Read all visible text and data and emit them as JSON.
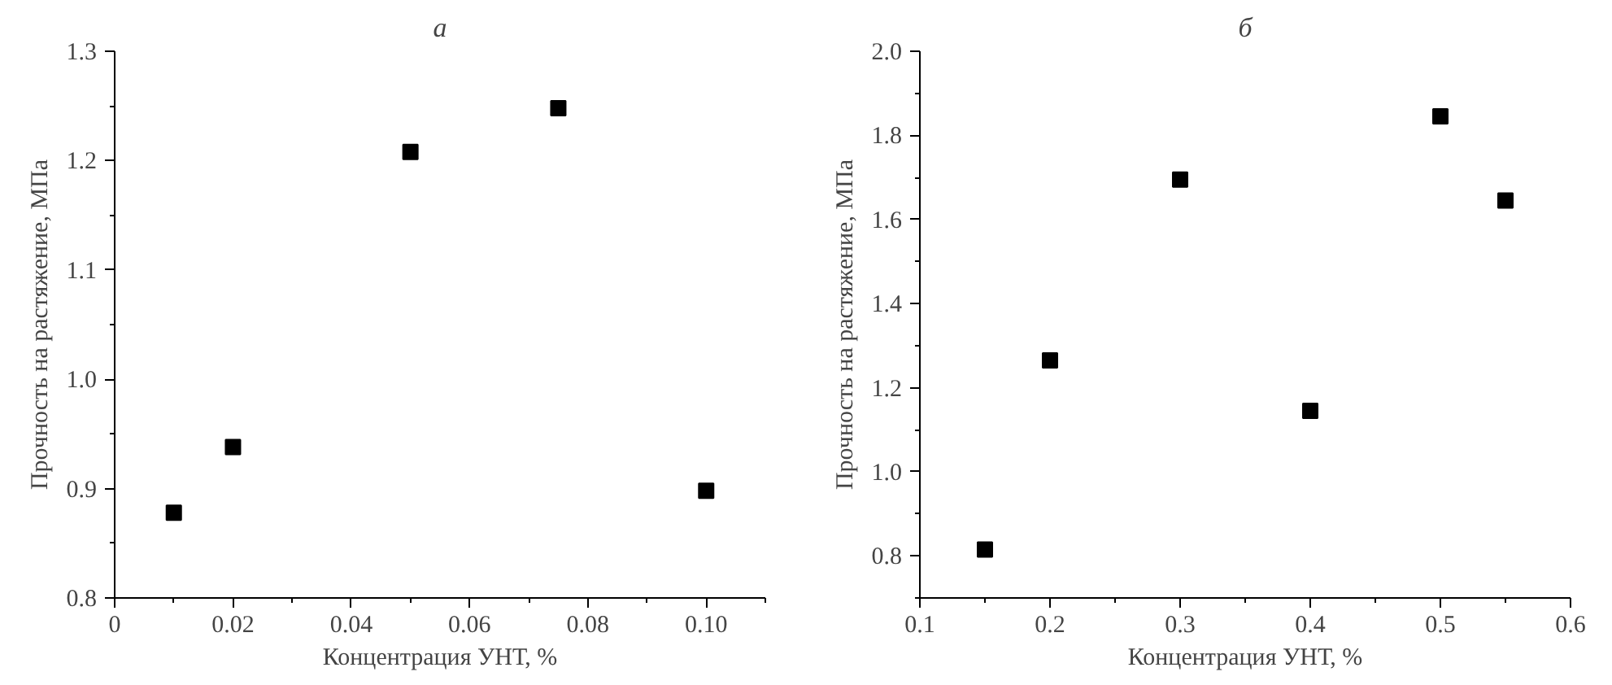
{
  "chart_data": [
    {
      "type": "scatter",
      "title": "а",
      "xlabel": "Концентрация УНТ, %",
      "ylabel": "Прочность на растяжение, МПа",
      "marker": "square",
      "x": [
        0.01,
        0.02,
        0.05,
        0.075,
        0.1
      ],
      "series": [
        {
          "color": "#000000",
          "values": [
            0.878,
            0.938,
            1.208,
            1.248,
            0.898
          ]
        }
      ],
      "xlim": [
        0,
        0.11
      ],
      "ylim": [
        0.8,
        1.3
      ],
      "xticks": [
        0,
        {
          "value": 0.01,
          "label": null
        },
        0.02,
        {
          "value": 0.03,
          "label": null
        },
        0.04,
        {
          "value": 0.05,
          "label": null
        },
        0.06,
        {
          "value": 0.07,
          "label": null
        },
        0.08,
        {
          "value": 0.09,
          "label": null
        },
        {
          "value": 0.1,
          "label": "0.10"
        },
        {
          "value": 0.11,
          "label": null
        }
      ],
      "yticks": [
        0.8,
        {
          "value": 0.85,
          "label": null
        },
        0.9,
        {
          "value": 0.95,
          "label": null
        },
        {
          "value": 1.0,
          "label": "1.0"
        },
        {
          "value": 1.05,
          "label": null
        },
        1.1,
        {
          "value": 1.15,
          "label": null
        },
        1.2,
        {
          "value": 1.25,
          "label": null
        },
        1.3
      ]
    },
    {
      "type": "scatter",
      "title": "б",
      "xlabel": "Концентрация УНТ, %",
      "ylabel": "Прочность на растяжение, МПа",
      "marker": "square",
      "x": [
        0.15,
        0.2,
        0.3,
        0.4,
        0.5,
        0.55
      ],
      "series": [
        {
          "color": "#000000",
          "values": [
            0.815,
            1.265,
            1.695,
            1.145,
            1.845,
            1.645
          ]
        }
      ],
      "xlim": [
        0.1,
        0.6
      ],
      "ylim": [
        0.7,
        2.0
      ],
      "xticks": [
        0.1,
        {
          "value": 0.15,
          "label": null
        },
        0.2,
        {
          "value": 0.25,
          "label": null
        },
        0.3,
        {
          "value": 0.35,
          "label": null
        },
        0.4,
        {
          "value": 0.45,
          "label": null
        },
        0.5,
        {
          "value": 0.55,
          "label": null
        },
        0.6
      ],
      "yticks": [
        {
          "value": 0.7,
          "label": null
        },
        0.8,
        {
          "value": 0.9,
          "label": null
        },
        {
          "value": 1.0,
          "label": "1.0"
        },
        {
          "value": 1.1,
          "label": null
        },
        1.2,
        {
          "value": 1.3,
          "label": null
        },
        1.4,
        {
          "value": 1.5,
          "label": null
        },
        1.6,
        {
          "value": 1.7,
          "label": null
        },
        1.8,
        {
          "value": 1.9,
          "label": null
        },
        {
          "value": 2.0,
          "label": "2.0"
        }
      ]
    }
  ]
}
